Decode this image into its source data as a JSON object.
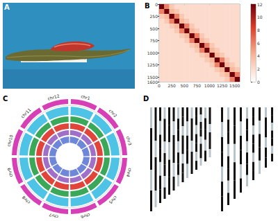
{
  "panel_labels": [
    "A",
    "B",
    "C",
    "D"
  ],
  "chart_data": {
    "type": "heatmap",
    "bins": [
      0,
      100,
      200,
      300,
      400,
      500,
      600,
      700,
      800,
      900,
      1000,
      1100,
      1200,
      1300,
      1400,
      1500,
      1600
    ],
    "values": [
      [
        12,
        6,
        3,
        2,
        2,
        2,
        2,
        2,
        2,
        2,
        2,
        2,
        2,
        2,
        2,
        2
      ],
      [
        6,
        12,
        4,
        3,
        2,
        2,
        2,
        2,
        2,
        2,
        2,
        2,
        2,
        2,
        2,
        2
      ],
      [
        3,
        4,
        12,
        6,
        3,
        2,
        2,
        2,
        2,
        2,
        2,
        2,
        2,
        2,
        2,
        2
      ],
      [
        2,
        3,
        6,
        12,
        4,
        3,
        2,
        2,
        2,
        2,
        2,
        2,
        2,
        2,
        2,
        2
      ],
      [
        2,
        2,
        3,
        4,
        12,
        6,
        3,
        2,
        2,
        2,
        2,
        2,
        2,
        2,
        2,
        2
      ],
      [
        2,
        2,
        2,
        3,
        6,
        12,
        4,
        3,
        2,
        2,
        2,
        2,
        2,
        2,
        2,
        2
      ],
      [
        2,
        2,
        2,
        2,
        3,
        4,
        12,
        6,
        3,
        2,
        2,
        2,
        2,
        2,
        2,
        2
      ],
      [
        2,
        2,
        2,
        2,
        2,
        3,
        6,
        12,
        4,
        3,
        2,
        2,
        2,
        2,
        2,
        2
      ],
      [
        2,
        2,
        2,
        2,
        2,
        2,
        3,
        4,
        12,
        6,
        3,
        2,
        2,
        2,
        2,
        2
      ],
      [
        2,
        2,
        2,
        2,
        2,
        2,
        2,
        3,
        6,
        12,
        4,
        3,
        2,
        2,
        2,
        2
      ],
      [
        2,
        2,
        2,
        2,
        2,
        2,
        2,
        2,
        3,
        4,
        12,
        4,
        3,
        2,
        2,
        2
      ],
      [
        2,
        2,
        2,
        2,
        2,
        2,
        2,
        2,
        2,
        3,
        4,
        12,
        6,
        3,
        2,
        2
      ],
      [
        2,
        2,
        2,
        2,
        2,
        2,
        2,
        2,
        2,
        2,
        3,
        6,
        12,
        4,
        3,
        2
      ],
      [
        2,
        2,
        2,
        2,
        2,
        2,
        2,
        2,
        2,
        2,
        2,
        3,
        4,
        12,
        4,
        3
      ],
      [
        2,
        2,
        2,
        2,
        2,
        2,
        2,
        2,
        2,
        2,
        2,
        2,
        3,
        4,
        12,
        6
      ],
      [
        2,
        2,
        2,
        2,
        2,
        2,
        2,
        2,
        2,
        2,
        2,
        2,
        2,
        3,
        6,
        12
      ]
    ],
    "xlim": [
      0,
      1600
    ],
    "ylim": [
      0,
      1600
    ],
    "xticks": [
      0,
      250,
      500,
      750,
      1000,
      1250,
      1500
    ],
    "yticks": [
      0,
      250,
      500,
      750,
      1000,
      1250,
      1500
    ],
    "colorbar": {
      "range": [
        0,
        12
      ],
      "ticks": [
        0,
        2,
        4,
        6,
        8,
        10,
        12
      ]
    }
  },
  "circos": {
    "chromosomes": [
      "chr1",
      "chr2",
      "chr3",
      "chr4",
      "chr5",
      "chr6",
      "chr7",
      "chr8",
      "chr9",
      "chr10",
      "chr11",
      "chr12"
    ]
  }
}
